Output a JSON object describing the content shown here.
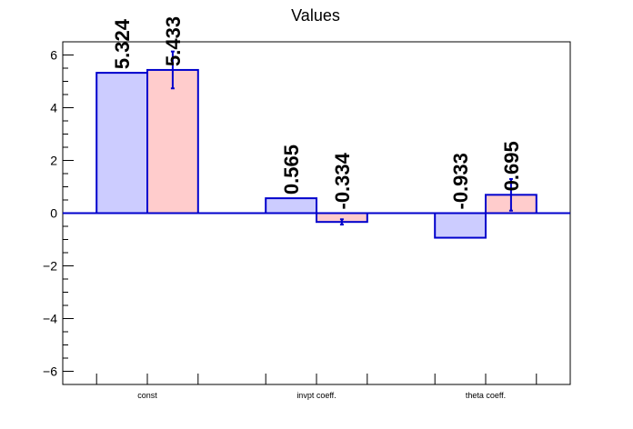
{
  "chart_data": {
    "type": "bar",
    "title": "Values",
    "xlabel": "",
    "ylabel": "",
    "categories": [
      "const",
      "invpt coeff.",
      "theta coeff."
    ],
    "series": [
      {
        "values": [
          5.324,
          0.565,
          -0.933
        ],
        "value_labels": [
          "5.324",
          "0.565",
          "-0.933"
        ],
        "fill": "#ccccff",
        "stroke": "#0000cc"
      },
      {
        "values": [
          5.433,
          -0.334,
          0.695
        ],
        "value_labels": [
          "5.433",
          "-0.334",
          "0.695"
        ],
        "errors": [
          0.7,
          0.1,
          0.6
        ],
        "fill": "#ffcccc",
        "stroke": "#0000cc"
      }
    ],
    "ylim": [
      -6.5,
      6.5
    ],
    "yticks": [
      -6,
      -4,
      -2,
      0,
      2,
      4,
      6
    ],
    "ytick_labels": [
      "−6",
      "−4",
      "−2",
      "0",
      "2",
      "4",
      "6"
    ],
    "grid": false,
    "legend": "none",
    "zero_line_color": "#0000cc"
  }
}
